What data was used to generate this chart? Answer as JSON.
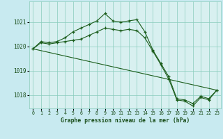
{
  "title": "Graphe pression niveau de la mer (hPa)",
  "background_color": "#c8eaf0",
  "plot_background": "#d8f0f0",
  "line_color": "#1a5c1a",
  "grid_color": "#88ccbb",
  "text_color": "#1a4e1a",
  "ylim": [
    1017.45,
    1021.85
  ],
  "xlim": [
    -0.5,
    23.5
  ],
  "yticks": [
    1018,
    1019,
    1020,
    1021
  ],
  "xticks": [
    0,
    1,
    2,
    3,
    4,
    5,
    6,
    7,
    8,
    9,
    10,
    11,
    12,
    13,
    14,
    15,
    16,
    17,
    18,
    19,
    20,
    21,
    22,
    23
  ],
  "series1_x": [
    0,
    1,
    2,
    3,
    4,
    5,
    6,
    7,
    8,
    9,
    10,
    11,
    12,
    13,
    14,
    15,
    16,
    17,
    18,
    19,
    20,
    21,
    22,
    23
  ],
  "series1_y": [
    1019.9,
    1020.2,
    1020.15,
    1020.2,
    1020.35,
    1020.6,
    1020.75,
    1020.9,
    1021.05,
    1021.35,
    1021.05,
    1021.0,
    1021.05,
    1021.1,
    1020.6,
    1019.85,
    1019.3,
    1018.75,
    1017.85,
    1017.8,
    1017.65,
    1017.95,
    1017.85,
    1018.2
  ],
  "series2_x": [
    0,
    1,
    2,
    3,
    4,
    5,
    6,
    7,
    8,
    9,
    10,
    11,
    12,
    13,
    14,
    15,
    16,
    17,
    18,
    19,
    20,
    21,
    22,
    23
  ],
  "series2_y": [
    1019.9,
    1020.15,
    1020.1,
    1020.15,
    1020.2,
    1020.25,
    1020.3,
    1020.45,
    1020.6,
    1020.75,
    1020.7,
    1020.65,
    1020.7,
    1020.65,
    1020.35,
    1019.8,
    1019.25,
    1018.65,
    1017.8,
    1017.75,
    1017.55,
    1017.9,
    1017.8,
    1018.2
  ],
  "series3_x": [
    0,
    23
  ],
  "series3_y": [
    1019.9,
    1018.2
  ]
}
